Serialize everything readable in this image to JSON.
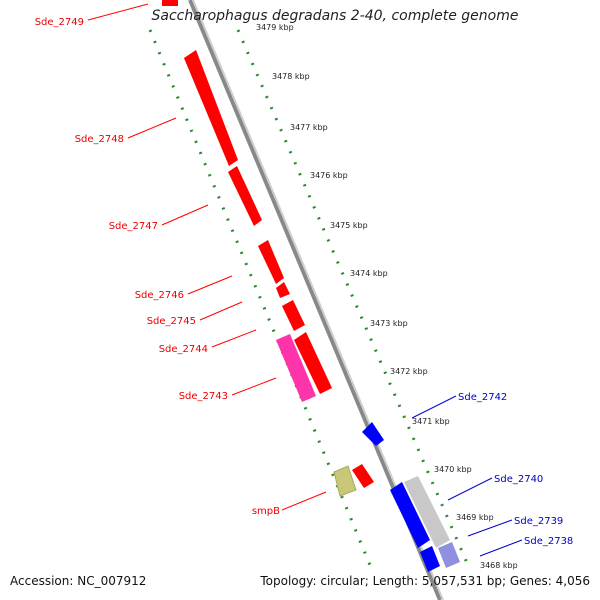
{
  "title": "Saccharophagus degradans 2-40, complete genome",
  "accession": "Accession: NC_007912",
  "topology": "Topology: circular; Length: 5,057,531 bp; Genes: 4,056",
  "scale": {
    "visible_cut_label": "3479 kbp",
    "ticks": [
      "3478 kbp",
      "3477 kbp",
      "3476 kbp",
      "3475 kbp",
      "3474 kbp",
      "3473 kbp",
      "3472 kbp",
      "3471 kbp",
      "3470 kbp",
      "3469 kbp",
      "3468 kbp"
    ]
  },
  "genes_left": [
    "Sde_2749",
    "Sde_2748",
    "Sde_2747",
    "Sde_2746",
    "Sde_2745",
    "Sde_2744",
    "Sde_2743",
    "smpB"
  ],
  "genes_right": [
    "Sde_2742",
    "Sde_2740",
    "Sde_2739",
    "Sde_2738"
  ],
  "colors": {
    "forward_gene": "#ff0000",
    "reverse_gene": "#0000ff",
    "pink_gene": "#ff33aa",
    "smpB_gene": "#c8c878",
    "grey_gene": "#c8c8c8",
    "purple_gene": "#9090e0",
    "backbone": "#808080",
    "dotted_track": "#2a8a2a"
  }
}
